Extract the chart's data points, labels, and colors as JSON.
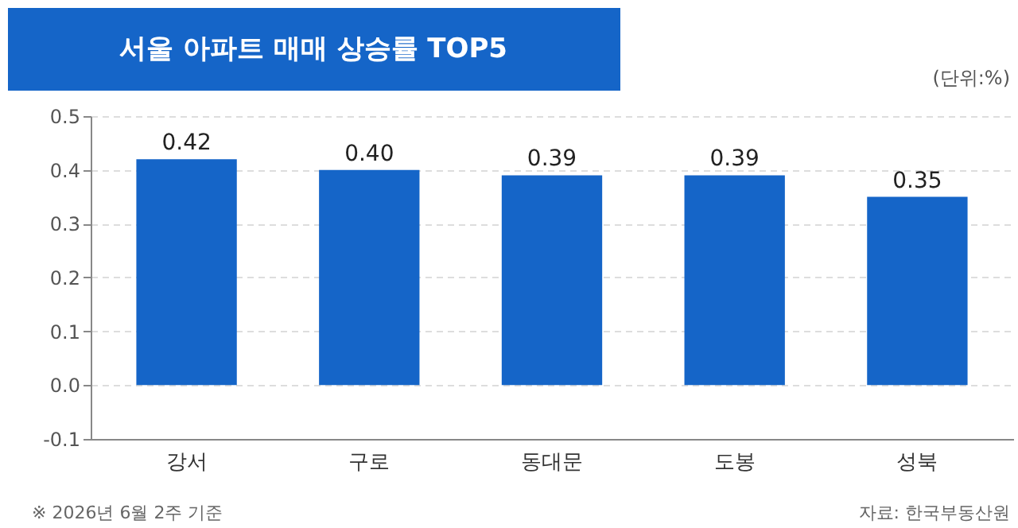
{
  "chart_data": {
    "type": "bar",
    "title": "서울 아파트 매매 상승률 TOP5",
    "categories": [
      "강서",
      "구로",
      "동대문",
      "도봉",
      "성북"
    ],
    "values": [
      0.42,
      0.4,
      0.39,
      0.39,
      0.35
    ],
    "value_labels": [
      "0.42",
      "0.40",
      "0.39",
      "0.39",
      "0.35"
    ],
    "color": "#1565c8",
    "ylim": [
      -0.1,
      0.5
    ],
    "yticks": [
      -0.1,
      {
        "value": 0,
        "label": "0.0"
      },
      0.1,
      0.2,
      0.3,
      0.4,
      0.5
    ],
    "grid": "y",
    "annotations": [
      "(단위:%)",
      "※ 2026년 6월 2주 기준",
      "자료: 한국부동산원"
    ]
  }
}
